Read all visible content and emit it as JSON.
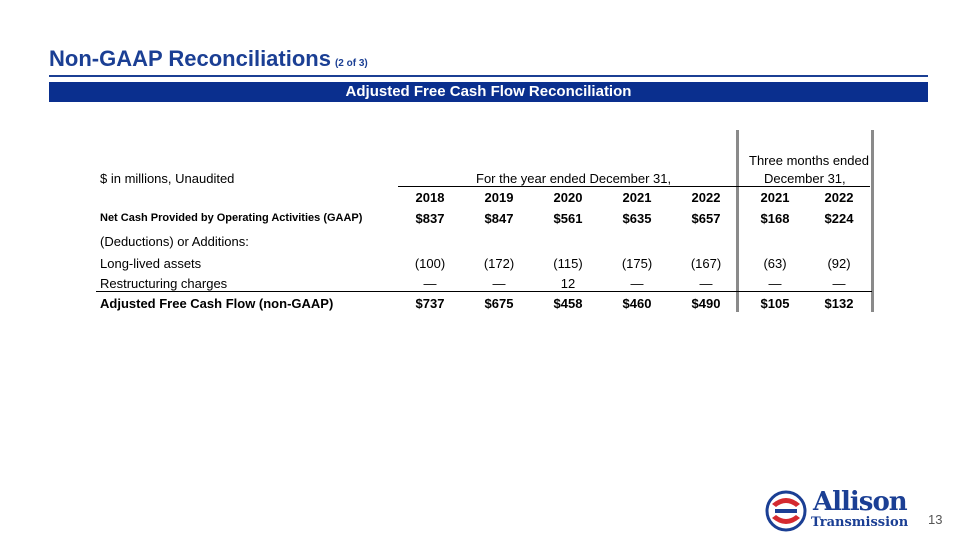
{
  "header": {
    "title": "Non-GAAP Reconciliations",
    "subtitle": "(2 of 3)"
  },
  "banner": "Adjusted Free Cash Flow Reconciliation",
  "table": {
    "unit_label": "$ in millions, Unaudited",
    "group1_header": "For the year ended December 31,",
    "group2_header_line1": "Three months ended",
    "group2_header_line2": "December 31,",
    "columns": [
      "2018",
      "2019",
      "2020",
      "2021",
      "2022",
      "2021",
      "2022"
    ],
    "rows": [
      {
        "label": "Net Cash Provided by Operating Activities (GAAP)",
        "values": [
          "$837",
          "$847",
          "$561",
          "$635",
          "$657",
          "$168",
          "$224"
        ]
      },
      {
        "label": "(Deductions) or Additions:",
        "values": [
          "",
          "",
          "",
          "",
          "",
          "",
          ""
        ]
      },
      {
        "label": "Long-lived assets",
        "values": [
          "(100)",
          "(172)",
          "(115)",
          "(175)",
          "(167)",
          "(63)",
          "(92)"
        ]
      },
      {
        "label": "Restructuring charges",
        "values": [
          "—",
          "—",
          "12",
          "—",
          "—",
          "—",
          "—"
        ]
      },
      {
        "label": "Adjusted Free Cash Flow (non-GAAP)",
        "values": [
          "$737",
          "$675",
          "$458",
          "$460",
          "$490",
          "$105",
          "$132"
        ]
      }
    ]
  },
  "footer": {
    "page_number": "13",
    "logo_line1": "Allison",
    "logo_line2": "Transmission"
  },
  "colors": {
    "title": "#1b3f94",
    "banner": "#0a2f8e",
    "logo_red": "#d42a30"
  }
}
